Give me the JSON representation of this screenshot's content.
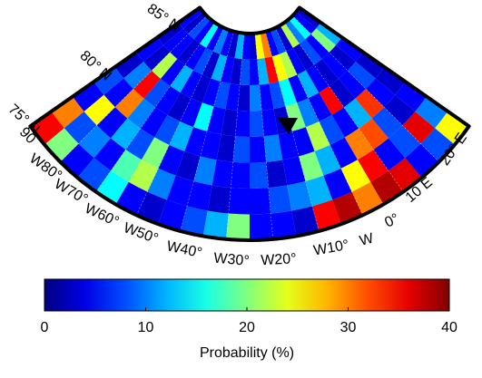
{
  "map": {
    "lat_labels": [
      "75° N",
      "80° N",
      "85° N"
    ],
    "lon_labels": [
      "90",
      "W80°",
      "W70°",
      "W60°",
      "W50°",
      "W40°",
      "W30°",
      "W20°",
      "W10°",
      "W",
      "0°",
      "10 E",
      "20° E"
    ],
    "colormap": "jet",
    "grid": {
      "values": [
        [
          35,
          20,
          5,
          8,
          15,
          5,
          3,
          5,
          8,
          12,
          20,
          5,
          5,
          3,
          35,
          38,
          30,
          38,
          36,
          5,
          8,
          25
        ],
        [
          30,
          8,
          10,
          5,
          18,
          22,
          10,
          5,
          5,
          3,
          5,
          5,
          8,
          10,
          12,
          5,
          25,
          35,
          5,
          8,
          36,
          10
        ],
        [
          5,
          25,
          5,
          12,
          8,
          20,
          5,
          3,
          10,
          5,
          5,
          8,
          3,
          5,
          20,
          12,
          5,
          30,
          32,
          8,
          3,
          5
        ],
        [
          8,
          5,
          30,
          10,
          5,
          8,
          12,
          5,
          5,
          3,
          8,
          5,
          10,
          5,
          5,
          22,
          8,
          5,
          12,
          33,
          5,
          3
        ],
        [
          3,
          10,
          35,
          8,
          5,
          3,
          5,
          15,
          5,
          3,
          5,
          8,
          5,
          3,
          20,
          10,
          5,
          35,
          3,
          5,
          8,
          3
        ],
        [
          5,
          3,
          22,
          5,
          12,
          5,
          3,
          5,
          8,
          5,
          3,
          10,
          5,
          8,
          15,
          5,
          12,
          5,
          3,
          5,
          3,
          5
        ],
        [
          3,
          5,
          5,
          3,
          5,
          8,
          3,
          12,
          5,
          3,
          8,
          5,
          12,
          35,
          25,
          22,
          5,
          3,
          8,
          5,
          20,
          12
        ],
        [
          5,
          3,
          8,
          5,
          15,
          5,
          10,
          5,
          3,
          12,
          5,
          3,
          25,
          30,
          5,
          8,
          3,
          22,
          10,
          15,
          5,
          3
        ]
      ]
    },
    "colorbar": {
      "lim": [
        0,
        40
      ],
      "ticks": [
        0,
        10,
        20,
        30,
        40
      ],
      "label": "Probability (%)"
    }
  }
}
